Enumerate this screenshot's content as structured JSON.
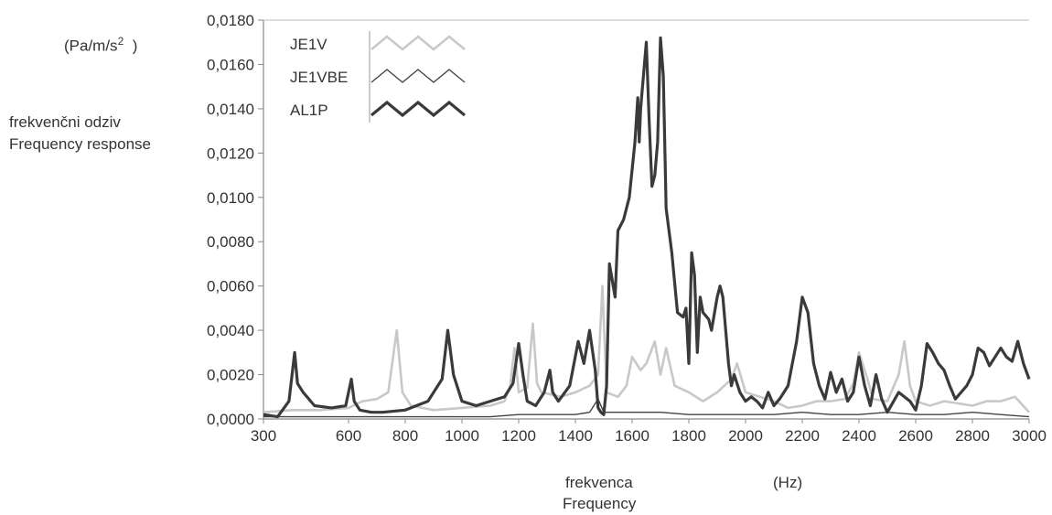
{
  "chart_data": {
    "type": "line",
    "y_unit_prefix": "(Pa/m/s",
    "y_unit_sup": "2",
    "y_unit_suffix": ")",
    "ylabel_line1": "frekvenčni odziv",
    "ylabel_line2": "Frequency response",
    "xlabel_line1": "frekvenca",
    "xlabel_line2": "Frequency",
    "x_unit": "(Hz)",
    "xlim": [
      300,
      3000
    ],
    "ylim": [
      0,
      0.018
    ],
    "x_ticks": [
      300,
      600,
      800,
      1000,
      1200,
      1400,
      1600,
      1800,
      2000,
      2200,
      2400,
      2600,
      2800,
      3000
    ],
    "x_tick_labels": [
      "300",
      "600",
      "800",
      "1000",
      "1200",
      "1400",
      "1600",
      "1800",
      "2000",
      "2200",
      "2400",
      "2600",
      "2800",
      "3000"
    ],
    "y_ticks": [
      0,
      0.002,
      0.004,
      0.006,
      0.008,
      0.01,
      0.012,
      0.014,
      0.016,
      0.018
    ],
    "y_tick_labels": [
      "0,0000",
      "0,0020",
      "0,0040",
      "0,0060",
      "0,0080",
      "0,0100",
      "0,0120",
      "0,0140",
      "0,0160",
      "0,0180"
    ],
    "grid": false,
    "legend_position": "top-left",
    "colors": {
      "JE1V": "#c8c8c8",
      "JE1VBE": "#444444",
      "AL1P": "#3a3a3a"
    },
    "series": [
      {
        "name": "JE1V",
        "x": [
          300,
          400,
          500,
          600,
          650,
          700,
          740,
          770,
          790,
          820,
          900,
          1000,
          1100,
          1150,
          1170,
          1185,
          1200,
          1230,
          1250,
          1265,
          1280,
          1350,
          1400,
          1450,
          1480,
          1495,
          1510,
          1550,
          1580,
          1600,
          1630,
          1650,
          1680,
          1700,
          1720,
          1750,
          1800,
          1850,
          1900,
          1950,
          1970,
          2000,
          2050,
          2100,
          2150,
          2200,
          2250,
          2300,
          2350,
          2380,
          2400,
          2430,
          2450,
          2500,
          2540,
          2560,
          2580,
          2600,
          2650,
          2700,
          2750,
          2800,
          2850,
          2900,
          2950,
          3000
        ],
        "y": [
          0.0003,
          0.0004,
          0.0004,
          0.0005,
          0.0008,
          0.0009,
          0.0012,
          0.004,
          0.0012,
          0.0006,
          0.0004,
          0.0005,
          0.0006,
          0.0008,
          0.0015,
          0.0032,
          0.0012,
          0.0014,
          0.0043,
          0.0016,
          0.0012,
          0.001,
          0.0012,
          0.0015,
          0.002,
          0.006,
          0.0012,
          0.001,
          0.0015,
          0.0028,
          0.0022,
          0.0025,
          0.0035,
          0.002,
          0.0032,
          0.0015,
          0.0012,
          0.0008,
          0.0012,
          0.0018,
          0.0025,
          0.0012,
          0.001,
          0.0008,
          0.0005,
          0.0006,
          0.0008,
          0.0008,
          0.0009,
          0.0016,
          0.003,
          0.0018,
          0.0009,
          0.0008,
          0.002,
          0.0035,
          0.0015,
          0.0008,
          0.0006,
          0.0008,
          0.0007,
          0.0006,
          0.0008,
          0.0008,
          0.001,
          0.0003
        ]
      },
      {
        "name": "JE1VBE",
        "x": [
          300,
          500,
          700,
          900,
          1100,
          1200,
          1300,
          1400,
          1450,
          1480,
          1500,
          1600,
          1700,
          1800,
          2000,
          2100,
          2200,
          2300,
          2400,
          2500,
          2600,
          2700,
          2800,
          2900,
          3000
        ],
        "y": [
          0.0001,
          0.0001,
          0.0001,
          0.0001,
          0.0001,
          0.0002,
          0.0002,
          0.0002,
          0.0003,
          0.0009,
          0.0003,
          0.0003,
          0.0003,
          0.0002,
          0.0002,
          0.0002,
          0.0003,
          0.0002,
          0.0002,
          0.0003,
          0.0002,
          0.0002,
          0.0003,
          0.0002,
          0.0001
        ]
      },
      {
        "name": "AL1P",
        "x": [
          300,
          350,
          390,
          410,
          420,
          440,
          480,
          540,
          590,
          610,
          620,
          640,
          680,
          720,
          800,
          880,
          930,
          950,
          970,
          1000,
          1050,
          1100,
          1150,
          1180,
          1200,
          1215,
          1230,
          1260,
          1290,
          1310,
          1320,
          1340,
          1380,
          1410,
          1430,
          1450,
          1470,
          1480,
          1490,
          1500,
          1510,
          1520,
          1540,
          1550,
          1570,
          1590,
          1610,
          1620,
          1625,
          1630,
          1640,
          1650,
          1660,
          1670,
          1680,
          1690,
          1700,
          1710,
          1720,
          1740,
          1760,
          1780,
          1790,
          1800,
          1810,
          1820,
          1830,
          1840,
          1850,
          1870,
          1880,
          1900,
          1910,
          1920,
          1940,
          1950,
          1960,
          1980,
          2000,
          2020,
          2040,
          2060,
          2080,
          2100,
          2120,
          2150,
          2180,
          2200,
          2220,
          2240,
          2260,
          2280,
          2300,
          2320,
          2340,
          2360,
          2380,
          2400,
          2420,
          2440,
          2460,
          2480,
          2500,
          2540,
          2580,
          2600,
          2620,
          2640,
          2660,
          2680,
          2700,
          2720,
          2740,
          2760,
          2780,
          2800,
          2820,
          2840,
          2860,
          2880,
          2900,
          2920,
          2940,
          2960,
          2980,
          3000
        ],
        "y": [
          0.0002,
          0.0001,
          0.0008,
          0.003,
          0.0016,
          0.0012,
          0.0006,
          0.0005,
          0.0006,
          0.0018,
          0.0008,
          0.0004,
          0.0003,
          0.0003,
          0.0004,
          0.0008,
          0.0018,
          0.004,
          0.002,
          0.0008,
          0.0006,
          0.0008,
          0.001,
          0.0016,
          0.0034,
          0.002,
          0.0008,
          0.0006,
          0.0012,
          0.0022,
          0.0012,
          0.0008,
          0.0015,
          0.0035,
          0.0025,
          0.004,
          0.0022,
          0.0005,
          0.0003,
          0.0002,
          0.0015,
          0.007,
          0.0055,
          0.0085,
          0.009,
          0.01,
          0.0125,
          0.0145,
          0.0125,
          0.014,
          0.0155,
          0.017,
          0.0135,
          0.0105,
          0.011,
          0.0125,
          0.0172,
          0.0155,
          0.0095,
          0.0075,
          0.0048,
          0.0046,
          0.005,
          0.0025,
          0.0075,
          0.0065,
          0.003,
          0.0055,
          0.0048,
          0.0045,
          0.004,
          0.0055,
          0.006,
          0.0055,
          0.0025,
          0.0015,
          0.002,
          0.0012,
          0.0008,
          0.001,
          0.0008,
          0.0005,
          0.0012,
          0.0006,
          0.0009,
          0.0015,
          0.0035,
          0.0055,
          0.0048,
          0.0025,
          0.0015,
          0.0009,
          0.0021,
          0.0012,
          0.0018,
          0.0008,
          0.0012,
          0.0028,
          0.0015,
          0.0006,
          0.002,
          0.0009,
          0.0003,
          0.0012,
          0.0008,
          0.0004,
          0.0015,
          0.0034,
          0.003,
          0.0025,
          0.0022,
          0.0015,
          0.0009,
          0.0012,
          0.0015,
          0.002,
          0.0032,
          0.003,
          0.0024,
          0.0028,
          0.0032,
          0.0028,
          0.0026,
          0.0035,
          0.0025,
          0.0018
        ]
      }
    ]
  }
}
